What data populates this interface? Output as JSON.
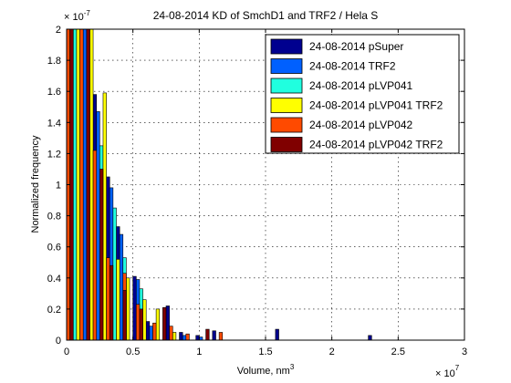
{
  "chart_data": {
    "type": "bar",
    "title": "24-08-2014 KD of SmchD1 and TRF2 / Hela S",
    "xlabel": "Volume, nm",
    "xlabel_superscript": "3",
    "ylabel": "Normalized frequency",
    "x_multiplier_base": "× 10",
    "x_multiplier_exp": "7",
    "y_multiplier_base": "× 10",
    "y_multiplier_exp": "-7",
    "xlim": [
      0,
      3
    ],
    "ylim": [
      0,
      2
    ],
    "xticks": [
      "0",
      "0.5",
      "1",
      "1.5",
      "2",
      "2.5",
      "3"
    ],
    "yticks": [
      "0",
      "0.2",
      "0.4",
      "0.6",
      "0.8",
      "1",
      "1.2",
      "1.4",
      "1.6",
      "1.8",
      "2"
    ],
    "grid": true,
    "legend_position": "top-right",
    "bin_width": 0.025,
    "series": [
      {
        "name": "24-08-2014 pSuper",
        "color": "#00008f",
        "bins": [
          [
            0.0125,
            1.83
          ],
          [
            0.1125,
            2.2
          ],
          [
            0.2125,
            1.58
          ],
          [
            0.3125,
            1.05
          ],
          [
            0.3875,
            0.73
          ],
          [
            0.5125,
            0.41
          ],
          [
            0.6125,
            0.12
          ],
          [
            0.7625,
            0.22
          ],
          [
            0.8625,
            0.05
          ],
          [
            0.9875,
            0.03
          ],
          [
            1.1125,
            0.06
          ],
          [
            1.5875,
            0.07
          ],
          [
            2.2875,
            0.03
          ]
        ]
      },
      {
        "name": "24-08-2014 TRF2",
        "color": "#0060ff",
        "bins": [
          [
            0.0375,
            2.2
          ],
          [
            0.1375,
            2.2
          ],
          [
            0.2375,
            1.47
          ],
          [
            0.3375,
            0.98
          ],
          [
            0.4125,
            0.68
          ],
          [
            0.5375,
            0.39
          ],
          [
            0.6375,
            0.09
          ],
          [
            0.8875,
            0.03
          ],
          [
            1.0125,
            0.02
          ]
        ]
      },
      {
        "name": "24-08-2014 pLVP041",
        "color": "#20ffdf",
        "bins": [
          [
            0.0625,
            2.2
          ],
          [
            0.1625,
            2.2
          ],
          [
            0.2625,
            1.25
          ],
          [
            0.3625,
            0.85
          ],
          [
            0.4375,
            0.53
          ],
          [
            0.5625,
            0.33
          ],
          [
            0.6625,
            0.06
          ],
          [
            0.7875,
            0.03
          ]
        ]
      },
      {
        "name": "24-08-2014 pLVP041 TRF2",
        "color": "#ffff00",
        "bins": [
          [
            0.0875,
            2.2
          ],
          [
            0.1875,
            2.2
          ],
          [
            0.2875,
            1.59
          ],
          [
            0.3875,
            0.52
          ],
          [
            0.4625,
            0.4
          ],
          [
            0.5875,
            0.26
          ],
          [
            0.6875,
            0.2
          ],
          [
            0.8125,
            0.05
          ]
        ]
      },
      {
        "name": "24-08-2014 pLVP042",
        "color": "#ff4a00",
        "bins": [
          [
            0.0125,
            2.2
          ],
          [
            0.1125,
            2.2
          ],
          [
            0.2125,
            1.22
          ],
          [
            0.3125,
            0.53
          ],
          [
            0.4375,
            0.43
          ],
          [
            0.5375,
            0.23
          ],
          [
            0.6625,
            0.11
          ],
          [
            0.7875,
            0.09
          ],
          [
            0.9125,
            0.04
          ],
          [
            1.1625,
            0.05
          ]
        ]
      },
      {
        "name": "24-08-2014 pLVP042 TRF2",
        "color": "#800000",
        "bins": [
          [
            0.0375,
            2.2
          ],
          [
            0.1625,
            2.2
          ],
          [
            0.2625,
            1.1
          ],
          [
            0.3375,
            0.48
          ],
          [
            0.4375,
            0.32
          ],
          [
            0.5625,
            0.2
          ],
          [
            0.7375,
            0.21
          ],
          [
            1.0625,
            0.07
          ]
        ]
      }
    ]
  }
}
